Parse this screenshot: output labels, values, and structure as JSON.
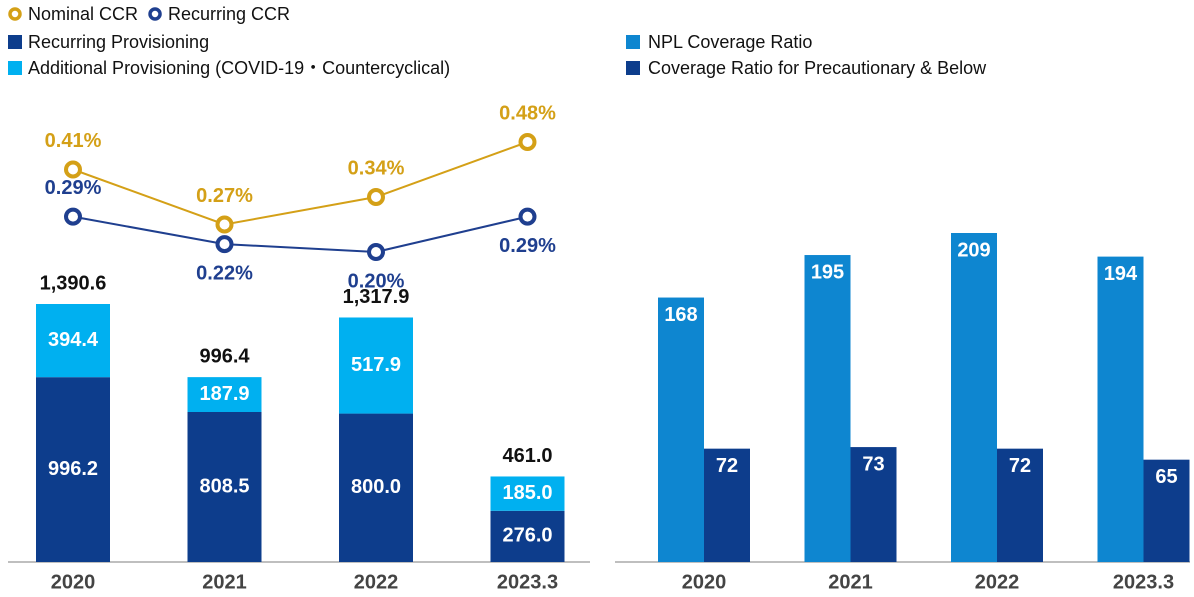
{
  "chart_data": [
    {
      "type": "stacked_bar_line",
      "categories": [
        "2020",
        "2021",
        "2022",
        "2023.3"
      ],
      "series": [
        {
          "name": "Recurring Provisioning",
          "color": "#0d3d8c",
          "values": [
            996.2,
            808.5,
            800.0,
            276.0
          ],
          "value_labels": [
            "996.2",
            "808.5",
            "800.0",
            "276.0"
          ]
        },
        {
          "name": "Additional Provisioning (COVID-19・Countercyclical)",
          "color": "#00b0f0",
          "values": [
            394.4,
            187.9,
            517.9,
            185.0
          ],
          "value_labels": [
            "394.4",
            "187.9",
            "517.9",
            "185.0"
          ]
        }
      ],
      "totals": [
        1390.6,
        996.4,
        1317.9,
        461.0
      ],
      "total_labels": [
        "1,390.6",
        "996.4",
        "1,317.9",
        "461.0"
      ],
      "lines": [
        {
          "name": "Nominal CCR",
          "color": "#d4a017",
          "values": [
            0.41,
            0.27,
            0.34,
            0.48
          ],
          "value_labels": [
            "0.41%",
            "0.27%",
            "0.34%",
            "0.48%"
          ]
        },
        {
          "name": "Recurring CCR",
          "color": "#1f3f8f",
          "values": [
            0.29,
            0.22,
            0.2,
            0.29
          ],
          "value_labels": [
            "0.29%",
            "0.22%",
            "0.20%",
            "0.29%"
          ]
        }
      ]
    },
    {
      "type": "grouped_bar",
      "categories": [
        "2020",
        "2021",
        "2022",
        "2023.3"
      ],
      "series": [
        {
          "name": "NPL Coverage Ratio",
          "color": "#0e86d0",
          "values": [
            168,
            195,
            209,
            194
          ]
        },
        {
          "name": "Coverage Ratio for Precautionary & Below",
          "color": "#0d3d8c",
          "values": [
            72,
            73,
            72,
            65
          ]
        }
      ]
    }
  ]
}
